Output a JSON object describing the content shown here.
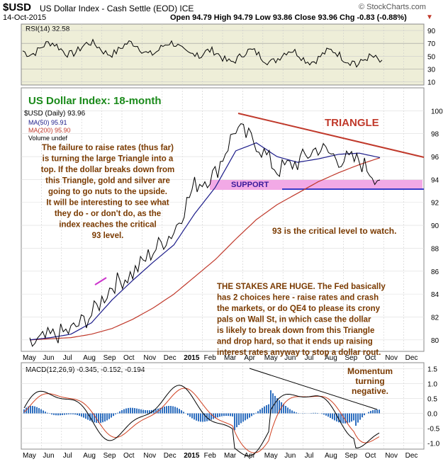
{
  "header": {
    "symbol": "$USD",
    "name": "US Dollar Index - Cash Settle (EOD)",
    "exchange": "ICE",
    "date": "14-Oct-2015",
    "ohlc": "Open 94.79  High 94.79  Low 93.86  Close 93.96  Chg -0.83 (-0.88%)",
    "copyright": "© StockCharts.com",
    "chg_arrow": "▼"
  },
  "rsi_panel": {
    "label": "RSI(14) 32.58",
    "ticks": [
      "90",
      "70",
      "50",
      "30",
      "10"
    ]
  },
  "price_panel": {
    "title": "US Dollar Index: 18-month",
    "legend": [
      "$USD (Daily) 93.96",
      "MA(50) 95.91",
      "MA(200) 95.90",
      "Volume undef"
    ],
    "ticks": [
      "100",
      "98",
      "96",
      "94",
      "92",
      "90",
      "88",
      "86",
      "84",
      "82",
      "80"
    ]
  },
  "macd_panel": {
    "label": "MACD(12,26,9) -0.345, -0.152, -0.194",
    "ticks": [
      "1.5",
      "1.0",
      "0.5",
      "0.0",
      "-0.5",
      "-1.0"
    ]
  },
  "x_axis": {
    "labels": [
      "May",
      "Jun",
      "Jul",
      "Aug",
      "Sep",
      "Oct",
      "Nov",
      "Dec",
      "2015",
      "Feb",
      "Mar",
      "Apr",
      "May",
      "Jun",
      "Jul",
      "Aug",
      "Sep",
      "Oct",
      "Nov",
      "Dec"
    ]
  },
  "annotations": {
    "triangle": "TRIANGLE",
    "support": "SUPPORT",
    "left_note": [
      "The failure to raise rates (thus far)",
      "is turning the large Triangle into a",
      "top. If the dollar breaks down from",
      "this Triangle, gold and silver are",
      "going to go nuts to the upside.",
      "It will be interesting to see what",
      "they do - or don't do, as the",
      "index reaches the critical",
      "93 level."
    ],
    "critical": "93 is the critical level to watch.",
    "stakes": [
      "THE STAKES ARE HUGE. The Fed basically",
      "has 2 choices here - raise rates and crash",
      "the markets, or do QE4 to please its crony",
      "pals on Wall St, in which case the dollar",
      "is likely to break down from this Triangle",
      "and drop hard, so that it ends up raising",
      "interest rates anyway to stop a dollar rout."
    ],
    "momentum": [
      "Momentum",
      "turning",
      "negative."
    ]
  },
  "colors": {
    "panel_bg": "#eeeed8",
    "price": "#000000",
    "ma50": "#1c1c8a",
    "ma200": "#c0392b",
    "triangle_line": "#c0392b",
    "support_band": "#f2a9e6",
    "support_line": "#3a3ac8",
    "note_text": "#7a3a00",
    "title_green": "#1a8a1a",
    "macd_hist": "#2f6fbf",
    "macd_signal": "#d04020"
  },
  "chart_data": {
    "type": "line",
    "series": [
      {
        "name": "$USD (Daily)",
        "x": [
          "2014-05",
          "2014-06",
          "2014-07",
          "2014-08",
          "2014-09",
          "2014-10",
          "2014-11",
          "2014-12",
          "2015-01",
          "2015-02",
          "2015-03",
          "2015-04",
          "2015-05",
          "2015-06",
          "2015-07",
          "2015-08",
          "2015-09",
          "2015-10"
        ],
        "values": [
          79.5,
          80.3,
          80.8,
          82.2,
          84.8,
          85.8,
          87.8,
          89.5,
          93.5,
          94.5,
          98.5,
          97.2,
          94.8,
          95.5,
          96.8,
          95.8,
          95.6,
          93.96
        ]
      },
      {
        "name": "MA(50)",
        "x": [
          "2014-05",
          "2014-06",
          "2014-07",
          "2014-08",
          "2014-09",
          "2014-10",
          "2014-11",
          "2014-12",
          "2015-01",
          "2015-02",
          "2015-03",
          "2015-04",
          "2015-05",
          "2015-06",
          "2015-07",
          "2015-08",
          "2015-09",
          "2015-10"
        ],
        "values": [
          80.0,
          80.2,
          80.5,
          81.5,
          83.5,
          85.2,
          86.8,
          88.3,
          91.0,
          93.3,
          96.5,
          97.2,
          96.0,
          95.5,
          95.8,
          96.2,
          96.3,
          95.91
        ]
      },
      {
        "name": "MA(200)",
        "x": [
          "2014-05",
          "2014-06",
          "2014-07",
          "2014-08",
          "2014-09",
          "2014-10",
          "2014-11",
          "2014-12",
          "2015-01",
          "2015-02",
          "2015-03",
          "2015-04",
          "2015-05",
          "2015-06",
          "2015-07",
          "2015-08",
          "2015-09",
          "2015-10"
        ],
        "values": [
          80.0,
          80.1,
          80.2,
          80.5,
          81.0,
          81.8,
          82.8,
          84.0,
          85.5,
          87.0,
          88.8,
          90.5,
          91.8,
          92.8,
          93.8,
          94.6,
          95.3,
          95.9
        ]
      }
    ],
    "ylim": [
      79,
      102
    ]
  }
}
